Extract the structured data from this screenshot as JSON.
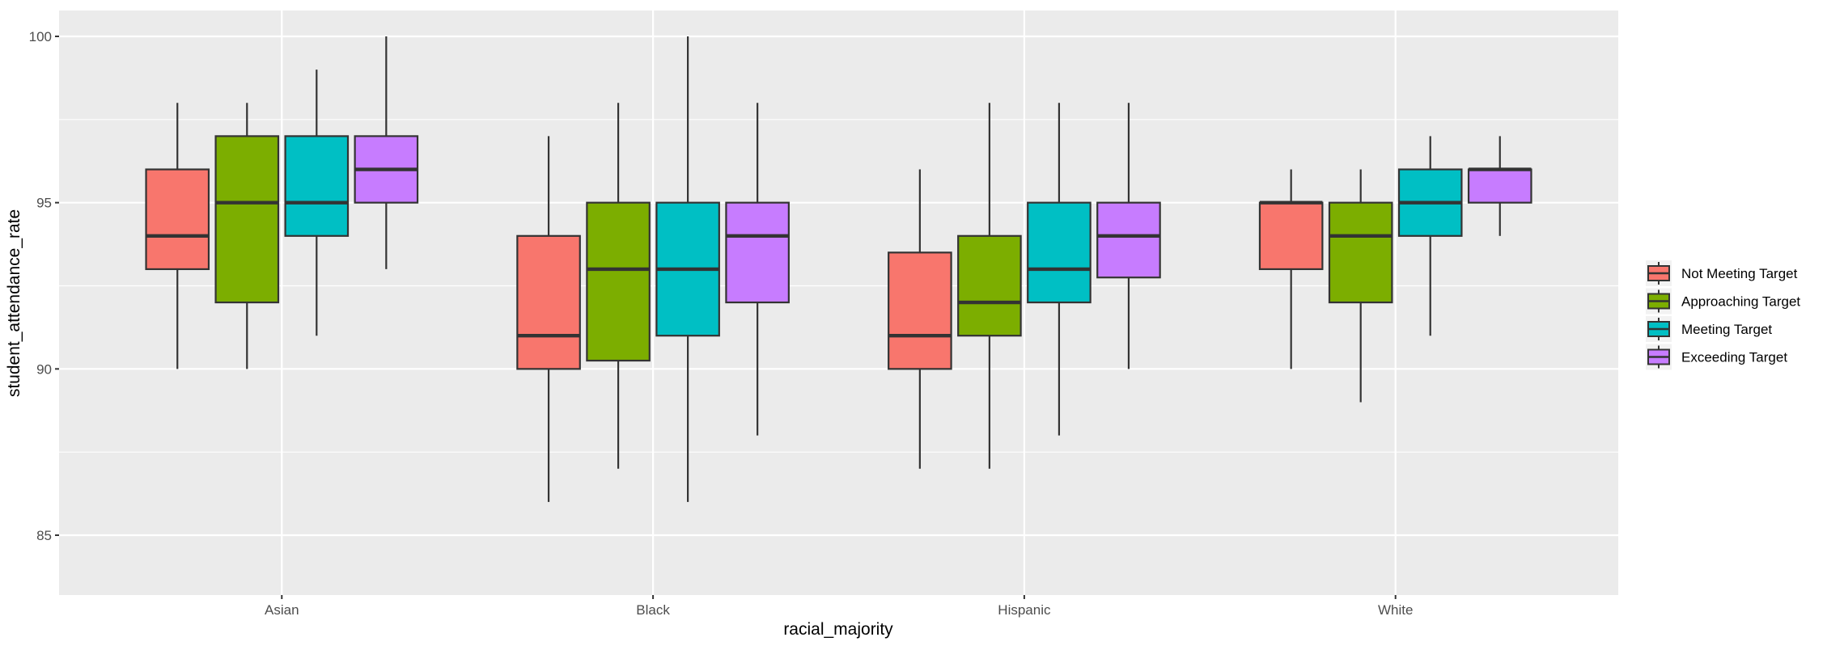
{
  "chart_data": {
    "type": "boxplot",
    "title": "",
    "xlabel": "racial_majority",
    "ylabel": "student_attendance_rate",
    "ylim": [
      83.3,
      100.8
    ],
    "yticks": [
      85,
      90,
      95,
      100
    ],
    "grid": true,
    "legend_position": "right",
    "categories": [
      "Asian",
      "Black",
      "Hispanic",
      "White"
    ],
    "series": [
      {
        "name": "Not Meeting Target",
        "color": "#F8766D",
        "boxes": [
          {
            "lower": 90,
            "q1": 93,
            "median": 94,
            "q3": 96,
            "upper": 98
          },
          {
            "lower": 86,
            "q1": 90,
            "median": 91,
            "q3": 94,
            "upper": 97
          },
          {
            "lower": 87,
            "q1": 90,
            "median": 91,
            "q3": 93.5,
            "upper": 96
          },
          {
            "lower": 90,
            "q1": 93,
            "median": 95,
            "q3": 95,
            "upper": 96
          }
        ]
      },
      {
        "name": "Approaching Target",
        "color": "#7CAE00",
        "boxes": [
          {
            "lower": 90,
            "q1": 92,
            "median": 95,
            "q3": 97,
            "upper": 98
          },
          {
            "lower": 87,
            "q1": 90.25,
            "median": 93,
            "q3": 95,
            "upper": 98
          },
          {
            "lower": 87,
            "q1": 91,
            "median": 92,
            "q3": 94,
            "upper": 98
          },
          {
            "lower": 89,
            "q1": 92,
            "median": 94,
            "q3": 95,
            "upper": 96
          }
        ]
      },
      {
        "name": "Meeting Target",
        "color": "#00BFC4",
        "boxes": [
          {
            "lower": 91,
            "q1": 94,
            "median": 95,
            "q3": 97,
            "upper": 99
          },
          {
            "lower": 86,
            "q1": 91,
            "median": 93,
            "q3": 95,
            "upper": 100
          },
          {
            "lower": 88,
            "q1": 92,
            "median": 93,
            "q3": 95,
            "upper": 98
          },
          {
            "lower": 91,
            "q1": 94,
            "median": 95,
            "q3": 96,
            "upper": 97
          }
        ]
      },
      {
        "name": "Exceeding Target",
        "color": "#C77CFF",
        "boxes": [
          {
            "lower": 93,
            "q1": 95,
            "median": 96,
            "q3": 97,
            "upper": 100
          },
          {
            "lower": 88,
            "q1": 92,
            "median": 94,
            "q3": 95,
            "upper": 98
          },
          {
            "lower": 90,
            "q1": 92.75,
            "median": 94,
            "q3": 95,
            "upper": 98
          },
          {
            "lower": 94,
            "q1": 95,
            "median": 96,
            "q3": 96,
            "upper": 97
          }
        ]
      }
    ]
  }
}
